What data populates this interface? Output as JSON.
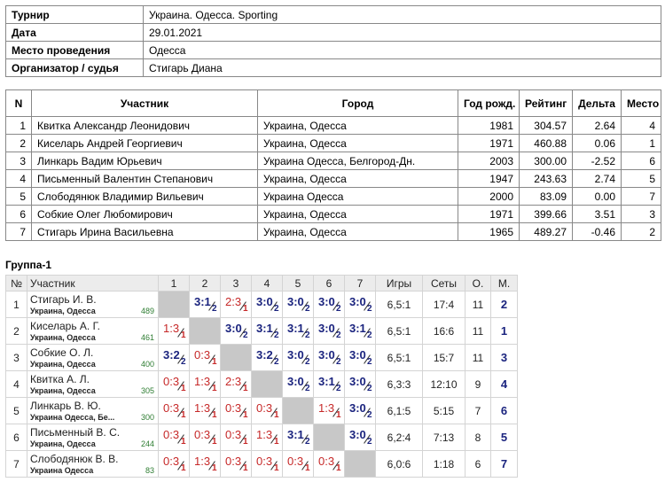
{
  "info": {
    "rows": [
      {
        "label": "Турнир",
        "value": "Украина. Одесса. Sporting"
      },
      {
        "label": "Дата",
        "value": "29.01.2021"
      },
      {
        "label": "Место проведения",
        "value": "Одесса"
      },
      {
        "label": "Организатор / судья",
        "value": "Стигарь Диана"
      }
    ]
  },
  "participants": {
    "columns": [
      "N",
      "Участник",
      "Город",
      "Год рожд.",
      "Рейтинг",
      "Дельта",
      "Место"
    ],
    "rows": [
      [
        "1",
        "Квитка Александр Леонидович",
        "Украина, Одесса",
        "1981",
        "304.57",
        "2.64",
        "4"
      ],
      [
        "2",
        "Киселарь Андрей Георгиевич",
        "Украина, Одесса",
        "1971",
        "460.88",
        "0.06",
        "1"
      ],
      [
        "3",
        "Линкарь Вадим Юрьевич",
        "Украина Одесса, Белгород-Дн.",
        "2003",
        "300.00",
        "-2.52",
        "6"
      ],
      [
        "4",
        "Письменный Валентин Степанович",
        "Украина, Одесса",
        "1947",
        "243.63",
        "2.74",
        "5"
      ],
      [
        "5",
        "Слободянюк Владимир Вильевич",
        "Украина Одесса",
        "2000",
        "83.09",
        "0.00",
        "7"
      ],
      [
        "6",
        "Собкие Олег Любомирович",
        "Украина, Одесса",
        "1971",
        "399.66",
        "3.51",
        "3"
      ],
      [
        "7",
        "Стигарь Ирина Васильевна",
        "Украина, Одесса",
        "1965",
        "489.27",
        "-0.46",
        "2"
      ]
    ]
  },
  "group": {
    "title": "Группа-1",
    "columns": [
      "№",
      "Участник",
      "1",
      "2",
      "3",
      "4",
      "5",
      "6",
      "7",
      "Игры",
      "Сеты",
      "О.",
      "М."
    ],
    "rows": [
      {
        "n": "1",
        "name": "Стигарь И. В.",
        "city": "Украина, Одесса",
        "rating": "489",
        "results": [
          null,
          {
            "score": "3:1",
            "pts": 2
          },
          {
            "score": "2:3",
            "pts": 1
          },
          {
            "score": "3:0",
            "pts": 2
          },
          {
            "score": "3:0",
            "pts": 2
          },
          {
            "score": "3:0",
            "pts": 2
          },
          {
            "score": "3:0",
            "pts": 2
          }
        ],
        "games": "6,5:1",
        "sets": "17:4",
        "points": "11",
        "place": "2"
      },
      {
        "n": "2",
        "name": "Киселарь А. Г.",
        "city": "Украина, Одесса",
        "rating": "461",
        "results": [
          {
            "score": "1:3",
            "pts": 1
          },
          null,
          {
            "score": "3:0",
            "pts": 2
          },
          {
            "score": "3:1",
            "pts": 2
          },
          {
            "score": "3:1",
            "pts": 2
          },
          {
            "score": "3:0",
            "pts": 2
          },
          {
            "score": "3:1",
            "pts": 2
          }
        ],
        "games": "6,5:1",
        "sets": "16:6",
        "points": "11",
        "place": "1"
      },
      {
        "n": "3",
        "name": "Собкие О. Л.",
        "city": "Украина, Одесса",
        "rating": "400",
        "results": [
          {
            "score": "3:2",
            "pts": 2
          },
          {
            "score": "0:3",
            "pts": 1
          },
          null,
          {
            "score": "3:2",
            "pts": 2
          },
          {
            "score": "3:0",
            "pts": 2
          },
          {
            "score": "3:0",
            "pts": 2
          },
          {
            "score": "3:0",
            "pts": 2
          }
        ],
        "games": "6,5:1",
        "sets": "15:7",
        "points": "11",
        "place": "3"
      },
      {
        "n": "4",
        "name": "Квитка А. Л.",
        "city": "Украина, Одесса",
        "rating": "305",
        "results": [
          {
            "score": "0:3",
            "pts": 1
          },
          {
            "score": "1:3",
            "pts": 1
          },
          {
            "score": "2:3",
            "pts": 1
          },
          null,
          {
            "score": "3:0",
            "pts": 2
          },
          {
            "score": "3:1",
            "pts": 2
          },
          {
            "score": "3:0",
            "pts": 2
          }
        ],
        "games": "6,3:3",
        "sets": "12:10",
        "points": "9",
        "place": "4"
      },
      {
        "n": "5",
        "name": "Линкарь В. Ю.",
        "city": "Украина Одесса, Бе...",
        "rating": "300",
        "results": [
          {
            "score": "0:3",
            "pts": 1
          },
          {
            "score": "1:3",
            "pts": 1
          },
          {
            "score": "0:3",
            "pts": 1
          },
          {
            "score": "0:3",
            "pts": 1
          },
          null,
          {
            "score": "1:3",
            "pts": 1
          },
          {
            "score": "3:0",
            "pts": 2
          }
        ],
        "games": "6,1:5",
        "sets": "5:15",
        "points": "7",
        "place": "6"
      },
      {
        "n": "6",
        "name": "Письменный В. С.",
        "city": "Украина, Одесса",
        "rating": "244",
        "results": [
          {
            "score": "0:3",
            "pts": 1
          },
          {
            "score": "0:3",
            "pts": 1
          },
          {
            "score": "0:3",
            "pts": 1
          },
          {
            "score": "1:3",
            "pts": 1
          },
          {
            "score": "3:1",
            "pts": 2
          },
          null,
          {
            "score": "3:0",
            "pts": 2
          }
        ],
        "games": "6,2:4",
        "sets": "7:13",
        "points": "8",
        "place": "5"
      },
      {
        "n": "7",
        "name": "Слободянюк В. В.",
        "city": "Украина Одесса",
        "rating": "83",
        "results": [
          {
            "score": "0:3",
            "pts": 1
          },
          {
            "score": "1:3",
            "pts": 1
          },
          {
            "score": "0:3",
            "pts": 1
          },
          {
            "score": "0:3",
            "pts": 1
          },
          {
            "score": "0:3",
            "pts": 1
          },
          {
            "score": "0:3",
            "pts": 1
          },
          null
        ],
        "games": "6,0:6",
        "sets": "1:18",
        "points": "6",
        "place": "7"
      }
    ]
  }
}
